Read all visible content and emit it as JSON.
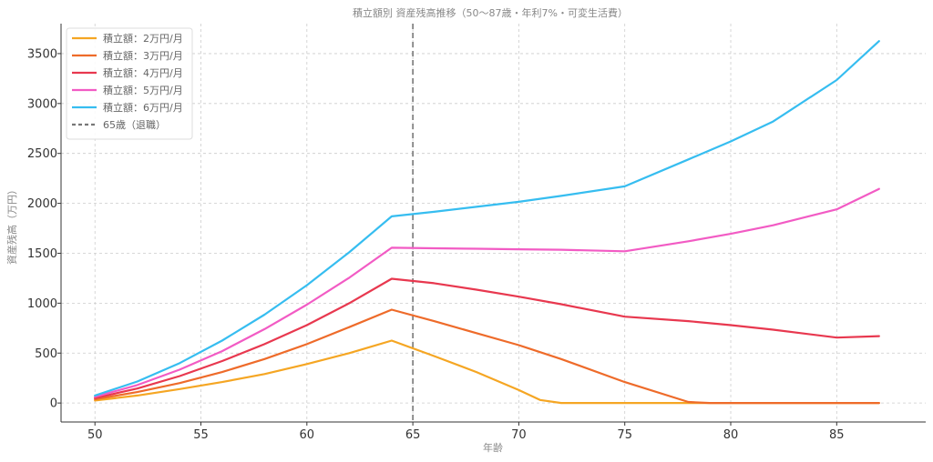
{
  "chart_data": {
    "type": "line",
    "title": "積立額別 資産残高推移（50〜87歳・年利7%・可変生活費）",
    "xlabel": "年齢",
    "ylabel": "資産残高（万円）",
    "xlim": [
      48.4,
      89.2
    ],
    "ylim": [
      -190,
      3800
    ],
    "xticks": [
      50,
      55,
      60,
      65,
      70,
      75,
      80,
      85
    ],
    "yticks": [
      0,
      500,
      1000,
      1500,
      2000,
      2500,
      3000,
      3500
    ],
    "grid": true,
    "legend_position": "top-left",
    "series": [
      {
        "name": "積立額：2万円/月",
        "color": "#f5a623",
        "points": [
          [
            50,
            25
          ],
          [
            52,
            75
          ],
          [
            54,
            140
          ],
          [
            56,
            210
          ],
          [
            58,
            290
          ],
          [
            60,
            390
          ],
          [
            62,
            500
          ],
          [
            64,
            625
          ],
          [
            66,
            470
          ],
          [
            68,
            310
          ],
          [
            70,
            130
          ],
          [
            71,
            30
          ],
          [
            72,
            0
          ],
          [
            75,
            0
          ],
          [
            80,
            0
          ],
          [
            85,
            0
          ],
          [
            87,
            0
          ]
        ]
      },
      {
        "name": "積立額：3万円/月",
        "color": "#ee6b2a",
        "points": [
          [
            50,
            38
          ],
          [
            52,
            110
          ],
          [
            54,
            200
          ],
          [
            56,
            310
          ],
          [
            58,
            440
          ],
          [
            60,
            590
          ],
          [
            62,
            760
          ],
          [
            64,
            935
          ],
          [
            66,
            820
          ],
          [
            68,
            700
          ],
          [
            70,
            580
          ],
          [
            72,
            440
          ],
          [
            75,
            210
          ],
          [
            78,
            10
          ],
          [
            79,
            0
          ],
          [
            80,
            0
          ],
          [
            85,
            0
          ],
          [
            87,
            0
          ]
        ]
      },
      {
        "name": "積立額：4万円/月",
        "color": "#e8384f",
        "points": [
          [
            50,
            50
          ],
          [
            52,
            145
          ],
          [
            54,
            270
          ],
          [
            56,
            420
          ],
          [
            58,
            590
          ],
          [
            60,
            780
          ],
          [
            62,
            1000
          ],
          [
            64,
            1245
          ],
          [
            66,
            1200
          ],
          [
            68,
            1135
          ],
          [
            70,
            1065
          ],
          [
            72,
            990
          ],
          [
            75,
            865
          ],
          [
            78,
            820
          ],
          [
            80,
            780
          ],
          [
            82,
            735
          ],
          [
            85,
            655
          ],
          [
            87,
            670
          ]
        ]
      },
      {
        "name": "積立額：5万円/月",
        "color": "#f25bc4",
        "points": [
          [
            50,
            62
          ],
          [
            52,
            180
          ],
          [
            54,
            335
          ],
          [
            56,
            520
          ],
          [
            58,
            740
          ],
          [
            60,
            985
          ],
          [
            62,
            1255
          ],
          [
            64,
            1555
          ],
          [
            66,
            1550
          ],
          [
            68,
            1545
          ],
          [
            70,
            1540
          ],
          [
            72,
            1535
          ],
          [
            75,
            1520
          ],
          [
            78,
            1620
          ],
          [
            80,
            1695
          ],
          [
            82,
            1780
          ],
          [
            85,
            1940
          ],
          [
            87,
            2145
          ]
        ]
      },
      {
        "name": "積立額：6万円/月",
        "color": "#36bdf0",
        "points": [
          [
            50,
            75
          ],
          [
            52,
            215
          ],
          [
            54,
            400
          ],
          [
            56,
            625
          ],
          [
            58,
            885
          ],
          [
            60,
            1180
          ],
          [
            62,
            1510
          ],
          [
            64,
            1870
          ],
          [
            66,
            1915
          ],
          [
            68,
            1965
          ],
          [
            70,
            2015
          ],
          [
            72,
            2075
          ],
          [
            75,
            2170
          ],
          [
            78,
            2440
          ],
          [
            80,
            2620
          ],
          [
            82,
            2820
          ],
          [
            85,
            3235
          ],
          [
            87,
            3625
          ]
        ]
      }
    ],
    "reference_line": {
      "name": "65歳（退職）",
      "x": 65,
      "color": "#777777",
      "style": "dashed"
    }
  }
}
